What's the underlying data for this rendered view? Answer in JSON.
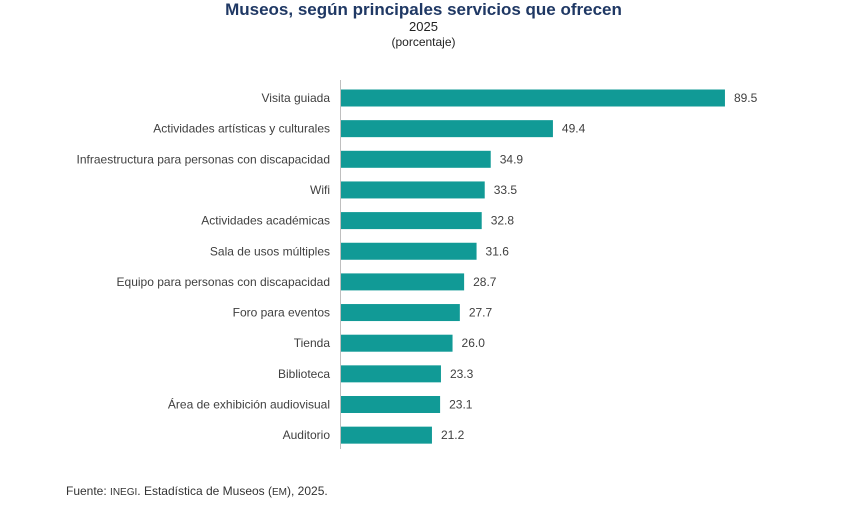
{
  "header": {
    "title": "Museos, según principales servicios que ofrecen",
    "year": "2025",
    "unit": "(porcentaje)"
  },
  "source": {
    "prefix": "Fuente:",
    "org": "INEGI",
    "mid": ". Estadística de Museos (",
    "abbr": "EM",
    "end": "), 2025."
  },
  "colors": {
    "bar": "#119a96",
    "axis": "#bfbfbf",
    "label": "#404040",
    "title": "#1f3864"
  },
  "chart_data": {
    "type": "bar",
    "orientation": "horizontal",
    "title": "Museos, según principales servicios que ofrecen",
    "subtitle": "2025",
    "unit": "(porcentaje)",
    "xlabel": "",
    "ylabel": "",
    "xlim": [
      0,
      100
    ],
    "grid": false,
    "categories": [
      "Visita guiada",
      "Actividades artísticas y culturales",
      "Infraestructura para personas con discapacidad",
      "Wifi",
      "Actividades académicas",
      "Sala de usos múltiples",
      "Equipo para personas con discapacidad",
      "Foro para eventos",
      "Tienda",
      "Biblioteca",
      "Área de exhibición audiovisual",
      "Auditorio"
    ],
    "values": [
      89.5,
      49.4,
      34.9,
      33.5,
      32.8,
      31.6,
      28.7,
      27.7,
      26.0,
      23.3,
      23.1,
      21.2
    ],
    "value_labels": [
      "89.5",
      "49.4",
      "34.9",
      "33.5",
      "32.8",
      "31.6",
      "28.7",
      "27.7",
      "26.0",
      "23.3",
      "23.1",
      "21.2"
    ]
  }
}
